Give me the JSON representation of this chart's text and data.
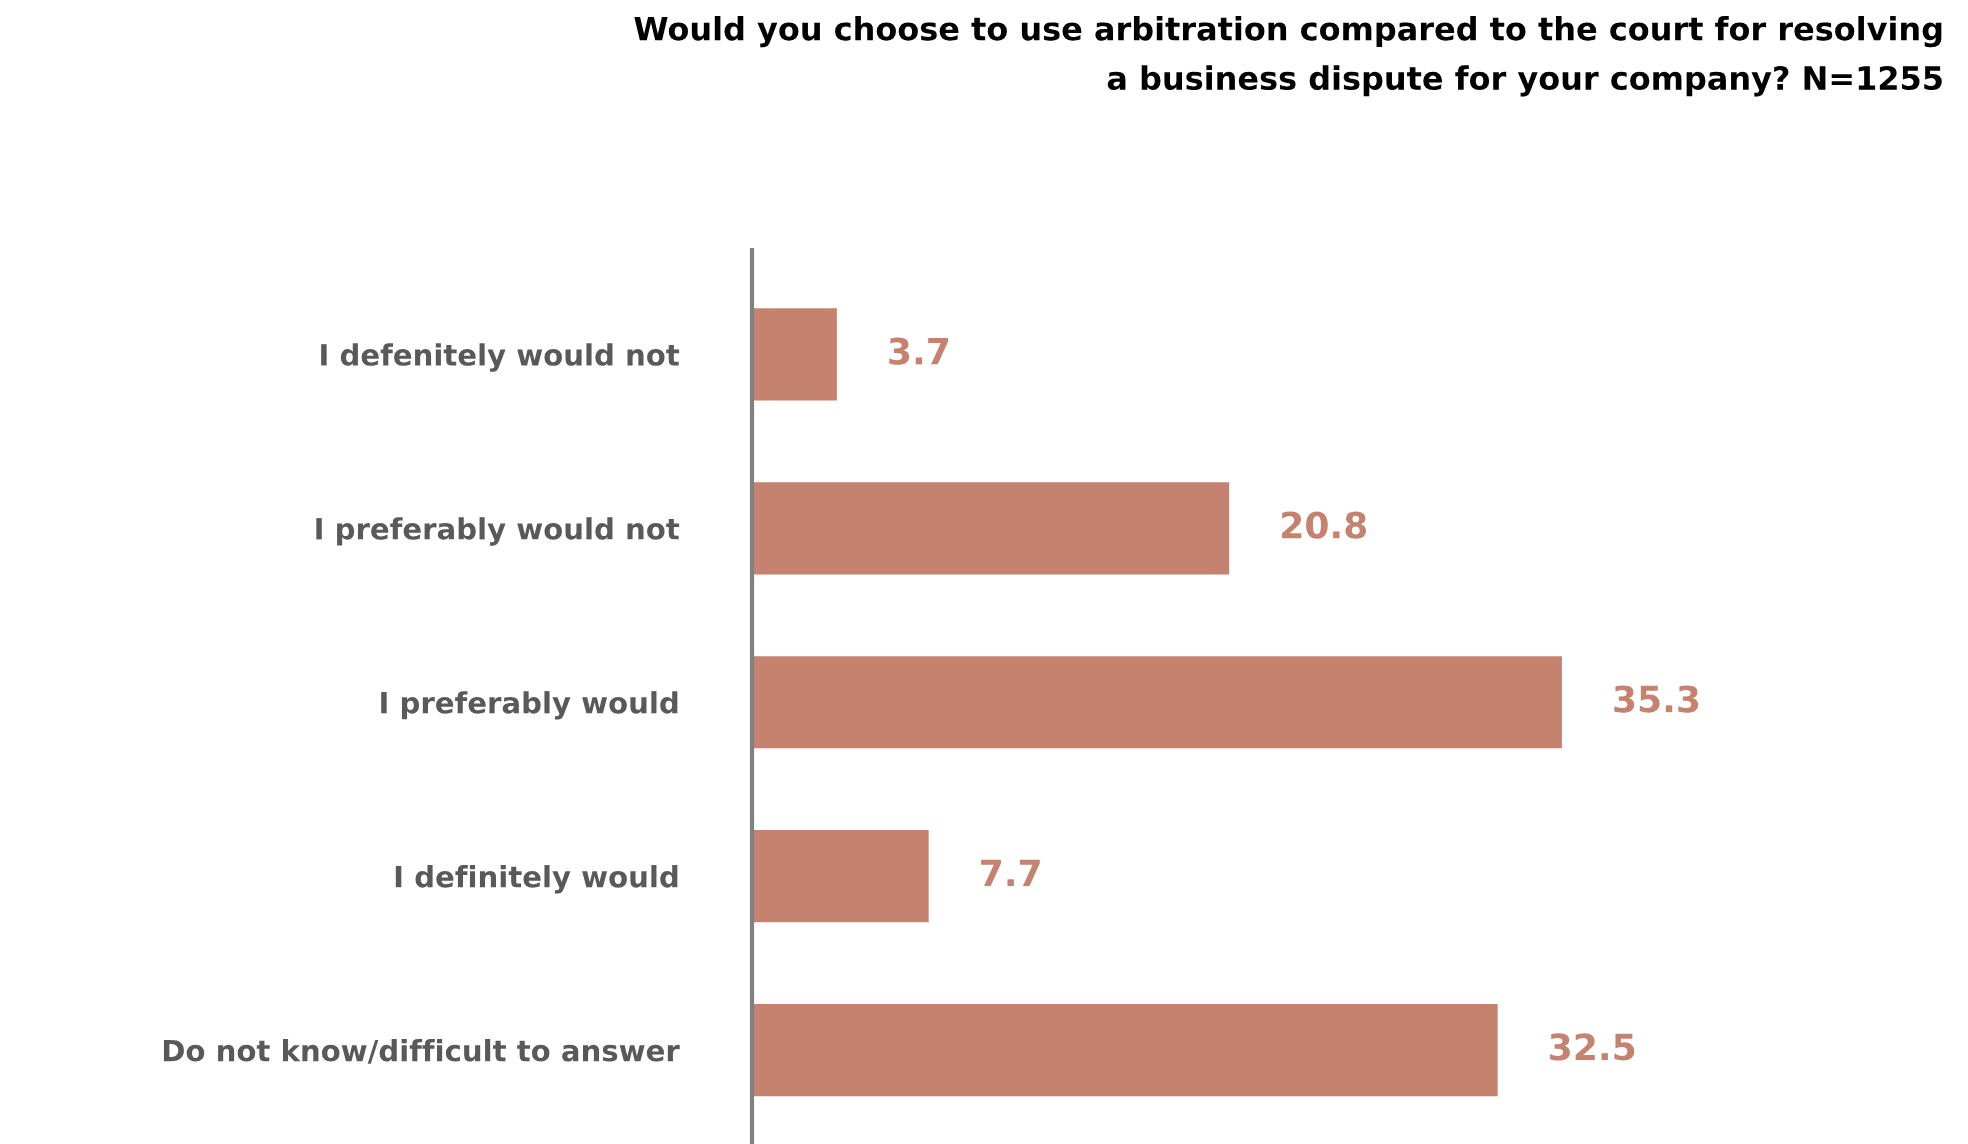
{
  "chart_data": {
    "type": "bar",
    "orientation": "horizontal",
    "title": "Would you choose to use arbitration compared to the court for resolving\na business dispute for your company? N=1255",
    "categories": [
      "I defenitely would not",
      "I preferably would not",
      "I preferably would",
      "I definitely would",
      "Do not know/difficult to answer"
    ],
    "values": [
      3.7,
      20.8,
      35.3,
      7.7,
      32.5
    ],
    "color": "#c5826f",
    "data_labels": true,
    "grid": false,
    "legend": false,
    "tick_labels": "y"
  }
}
